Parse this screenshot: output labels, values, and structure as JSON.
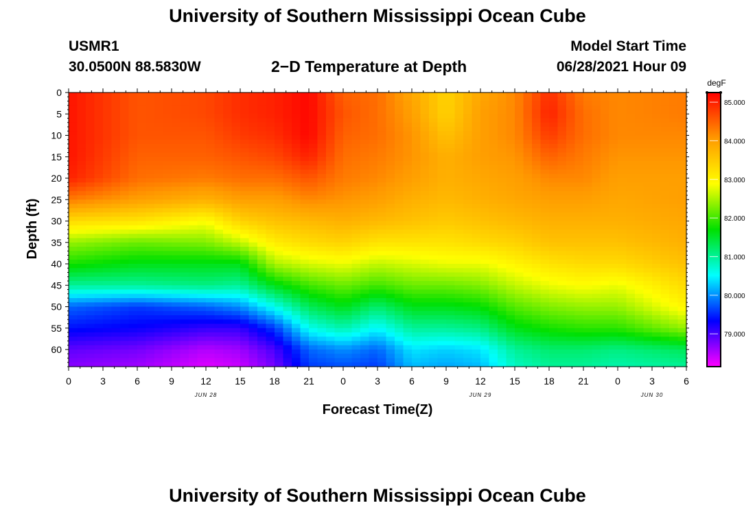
{
  "page": {
    "title_top": "University of Southern Mississippi Ocean Cube",
    "title_bottom": "University of Southern Mississippi Ocean Cube",
    "station": "USMR1",
    "location": "30.0500N  88.5830W",
    "model_start_label": "Model Start Time",
    "model_start_value": "06/28/2021 Hour 09"
  },
  "chart_data": {
    "type": "heatmap",
    "title": "2−D Temperature at Depth",
    "xlabel": "Forecast Time(Z)",
    "ylabel": "Depth (ft)",
    "x_hours_range": [
      0,
      54
    ],
    "x_tick_labels": [
      "0",
      "3",
      "6",
      "9",
      "12",
      "15",
      "18",
      "21",
      "0",
      "3",
      "6",
      "9",
      "12",
      "15",
      "18",
      "21",
      "0",
      "3",
      "6"
    ],
    "date_labels": [
      {
        "label": "JUN 28",
        "hour": 12
      },
      {
        "label": "JUN 29",
        "hour": 36
      },
      {
        "label": "JUN 30",
        "hour": 51
      }
    ],
    "y_range_ft": [
      0,
      64
    ],
    "y_ticks": [
      0,
      5,
      10,
      15,
      20,
      25,
      30,
      35,
      40,
      45,
      50,
      55,
      60
    ],
    "colorbar": {
      "units": "degF",
      "range": [
        78.15,
        85.25
      ],
      "ticks": [
        79.0,
        80.0,
        81.0,
        82.0,
        83.0,
        84.0,
        85.0
      ],
      "tick_labels": [
        "79.000",
        "80.000",
        "81.000",
        "82.000",
        "83.000",
        "84.000",
        "85.000"
      ],
      "colors": [
        "#ff00ff",
        "#0000ff",
        "#00ffff",
        "#00e000",
        "#ffff00",
        "#ff9900",
        "#ff0000"
      ]
    },
    "profiles": {
      "hours": [
        0,
        6,
        12,
        15,
        18,
        21,
        24,
        27,
        30,
        33,
        36,
        39,
        42,
        45,
        48,
        54
      ],
      "depths_ft": [
        0,
        5,
        10,
        15,
        20,
        25,
        30,
        35,
        40,
        45,
        50,
        55,
        60,
        64
      ],
      "temps_degF": [
        [
          85.1,
          85.1,
          85.1,
          85.1,
          85.0,
          84.3,
          83.3,
          82.4,
          81.8,
          81.0,
          79.8,
          79.4,
          78.9,
          78.7
        ],
        [
          84.6,
          84.6,
          84.6,
          84.5,
          84.4,
          84.0,
          83.2,
          82.2,
          81.6,
          81.0,
          79.6,
          79.3,
          78.8,
          78.6
        ],
        [
          84.7,
          84.7,
          84.6,
          84.5,
          84.3,
          83.8,
          82.9,
          82.3,
          81.6,
          81.1,
          79.8,
          79.1,
          78.5,
          78.3
        ],
        [
          84.9,
          84.9,
          84.8,
          84.6,
          84.4,
          84.0,
          83.4,
          82.6,
          81.6,
          81.0,
          80.0,
          79.1,
          78.6,
          78.4
        ],
        [
          85.0,
          85.0,
          84.9,
          84.7,
          84.4,
          84.0,
          83.6,
          83.1,
          82.5,
          81.6,
          80.6,
          79.6,
          79.0,
          78.8
        ],
        [
          85.2,
          85.2,
          85.2,
          85.0,
          84.6,
          84.2,
          83.7,
          83.3,
          82.7,
          82.0,
          81.3,
          80.6,
          79.8,
          79.6
        ],
        [
          84.5,
          84.6,
          84.5,
          84.4,
          84.3,
          84.1,
          83.8,
          83.4,
          82.8,
          82.2,
          81.6,
          80.9,
          80.0,
          79.7
        ],
        [
          84.4,
          84.4,
          84.4,
          84.3,
          84.2,
          84.0,
          83.7,
          83.2,
          82.6,
          82.0,
          81.2,
          80.5,
          79.8,
          79.6
        ],
        [
          83.9,
          84.0,
          84.1,
          84.1,
          84.0,
          83.8,
          83.6,
          83.2,
          82.7,
          82.2,
          81.6,
          81.0,
          80.4,
          80.2
        ],
        [
          83.4,
          83.4,
          83.6,
          83.8,
          83.8,
          83.7,
          83.5,
          83.2,
          82.8,
          82.2,
          81.6,
          81.0,
          80.3,
          80.1
        ],
        [
          83.9,
          84.0,
          84.0,
          84.0,
          83.9,
          83.8,
          83.6,
          83.3,
          82.8,
          82.3,
          81.7,
          81.1,
          80.4,
          80.2
        ],
        [
          84.2,
          84.2,
          84.2,
          84.1,
          84.0,
          83.9,
          83.7,
          83.4,
          83.0,
          82.6,
          82.1,
          81.6,
          81.0,
          80.8
        ],
        [
          84.9,
          85.0,
          84.8,
          84.5,
          84.2,
          84.0,
          83.8,
          83.6,
          83.2,
          82.8,
          82.3,
          81.8,
          81.2,
          81.0
        ],
        [
          84.3,
          84.4,
          84.4,
          84.3,
          84.2,
          84.0,
          83.8,
          83.6,
          83.3,
          82.9,
          82.4,
          81.9,
          81.2,
          81.0
        ],
        [
          84.2,
          84.2,
          84.2,
          84.1,
          84.0,
          83.9,
          83.8,
          83.6,
          83.3,
          82.8,
          82.4,
          81.9,
          81.1,
          80.9
        ],
        [
          84.3,
          84.3,
          84.2,
          84.1,
          84.0,
          84.0,
          83.9,
          83.8,
          83.6,
          83.3,
          83.0,
          82.4,
          81.3,
          81.0
        ]
      ]
    }
  }
}
